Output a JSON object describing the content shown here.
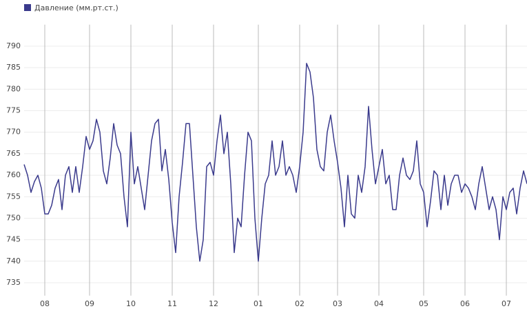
{
  "chart_data": {
    "type": "line",
    "categories": [
      null,
      null,
      null,
      null,
      null,
      null,
      "08",
      null,
      null,
      null,
      null,
      null,
      null,
      null,
      null,
      null,
      null,
      null,
      null,
      "09",
      null,
      null,
      null,
      null,
      null,
      null,
      null,
      null,
      null,
      null,
      null,
      "10",
      null,
      null,
      null,
      null,
      null,
      null,
      null,
      null,
      null,
      null,
      null,
      "11",
      null,
      null,
      null,
      null,
      null,
      null,
      null,
      null,
      null,
      null,
      null,
      "12",
      null,
      null,
      null,
      null,
      null,
      null,
      null,
      null,
      null,
      null,
      null,
      null,
      "01",
      null,
      null,
      null,
      null,
      null,
      null,
      null,
      null,
      null,
      null,
      null,
      "02",
      null,
      null,
      null,
      null,
      null,
      null,
      null,
      null,
      null,
      null,
      "03",
      null,
      null,
      null,
      null,
      null,
      null,
      null,
      null,
      null,
      null,
      null,
      "04",
      null,
      null,
      null,
      null,
      null,
      null,
      null,
      null,
      null,
      null,
      null,
      null,
      "05",
      null,
      null,
      null,
      null,
      null,
      null,
      null,
      null,
      null,
      null,
      null,
      "06",
      null,
      null,
      null,
      null,
      null,
      null,
      null,
      null,
      null,
      null,
      null,
      "07",
      null,
      null,
      null,
      null,
      null,
      null
    ],
    "series": [
      {
        "name": "Давление (мм.рт.ст.)",
        "color": "#3a3a8c",
        "values": [
          762.5,
          760,
          756,
          758.5,
          760,
          757,
          751,
          751,
          753,
          757,
          759,
          752,
          760,
          762,
          756,
          762,
          756,
          762,
          769,
          766,
          768,
          773,
          770,
          761,
          758,
          764,
          772,
          767,
          765,
          755,
          748,
          770,
          758,
          762,
          757,
          752,
          760,
          768,
          772,
          773,
          761,
          766,
          759,
          749,
          742,
          755,
          763,
          772,
          772,
          760,
          748,
          740,
          745,
          762,
          763,
          760,
          768,
          774,
          765,
          770,
          758,
          742,
          750,
          748,
          760,
          770,
          768,
          750,
          740,
          750,
          758,
          760,
          768,
          760,
          762,
          768,
          760,
          762,
          760,
          756,
          762,
          770,
          786,
          784,
          778,
          766,
          762,
          761,
          770,
          774,
          768,
          763,
          757,
          748,
          760,
          751,
          750,
          760,
          756,
          762,
          776,
          766,
          758,
          762,
          766,
          758,
          760,
          752,
          752,
          760,
          764,
          760,
          759,
          761,
          768,
          758,
          756,
          748,
          754,
          761,
          760,
          752,
          760,
          753,
          758,
          760,
          760,
          756,
          758,
          757,
          755,
          752,
          758,
          762,
          757,
          752,
          755,
          752,
          745,
          755,
          752,
          756,
          757,
          751,
          757,
          761,
          758
        ]
      }
    ],
    "ylim": [
      732,
      795
    ],
    "yticks": [
      735,
      740,
      745,
      750,
      755,
      760,
      765,
      770,
      775,
      780,
      785,
      790
    ],
    "grid": true,
    "legend": "top-left"
  }
}
